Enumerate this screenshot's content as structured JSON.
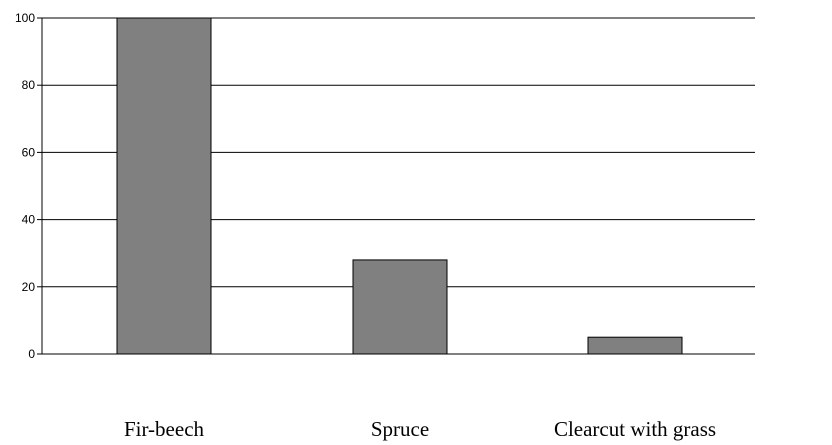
{
  "chart_data": {
    "type": "bar",
    "title": "",
    "xlabel": "",
    "ylabel": "",
    "categories": [
      "Fir-beech",
      "Spruce",
      "Clearcut with grass"
    ],
    "values": [
      100,
      28,
      5
    ],
    "ylim": [
      0,
      100
    ],
    "yticks": [
      0,
      20,
      40,
      60,
      80,
      100
    ],
    "grid": true,
    "legend": "none",
    "bar_color": "#808080",
    "bar_edge_color": "#000000"
  }
}
